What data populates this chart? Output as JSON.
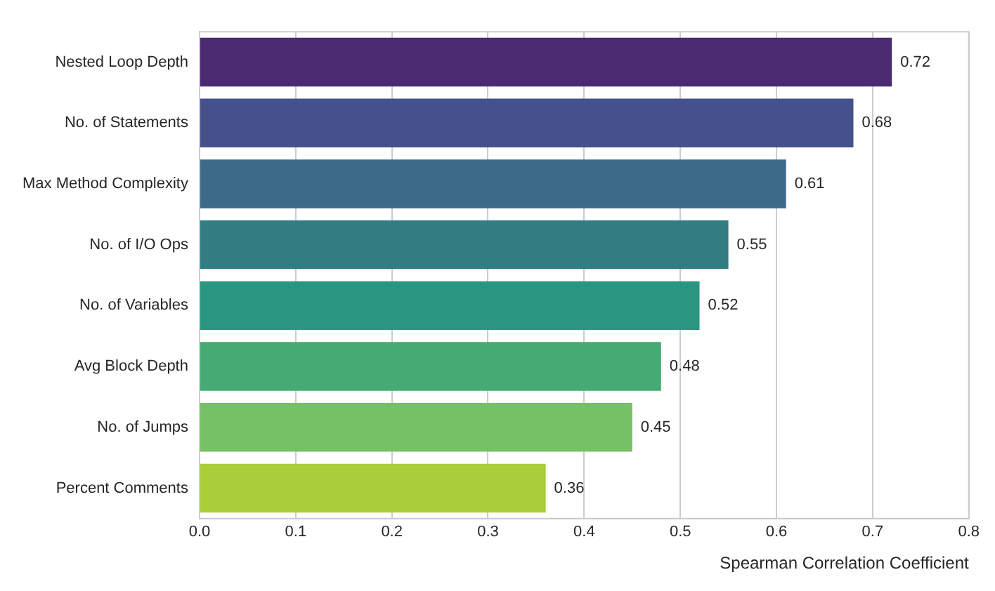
{
  "chart_data": {
    "type": "bar",
    "orientation": "horizontal",
    "xlabel": "Spearman Correlation Coefficient",
    "categories": [
      "Nested Loop Depth",
      "No. of Statements",
      "Max Method Complexity",
      "No. of I/O Ops",
      "No. of Variables",
      "Avg Block Depth",
      "No. of Jumps",
      "Percent Comments"
    ],
    "values": [
      0.72,
      0.68,
      0.61,
      0.55,
      0.52,
      0.48,
      0.45,
      0.36
    ],
    "colors": [
      "#4a2a70",
      "#46508a",
      "#3e6a8a",
      "#317d82",
      "#2a9580",
      "#46aa74",
      "#76c065",
      "#aacd3a"
    ],
    "xlim": [
      0,
      0.8
    ],
    "xticks": [
      {
        "value": 0,
        "label": "0.0"
      },
      0.1,
      0.2,
      0.3,
      0.4,
      0.5,
      0.6,
      0.7,
      0.8
    ],
    "value_labels": [
      "0.72",
      "0.68",
      "0.61",
      "0.55",
      "0.52",
      "0.48",
      "0.45",
      "0.36"
    ],
    "grid": "x",
    "legend": false
  }
}
